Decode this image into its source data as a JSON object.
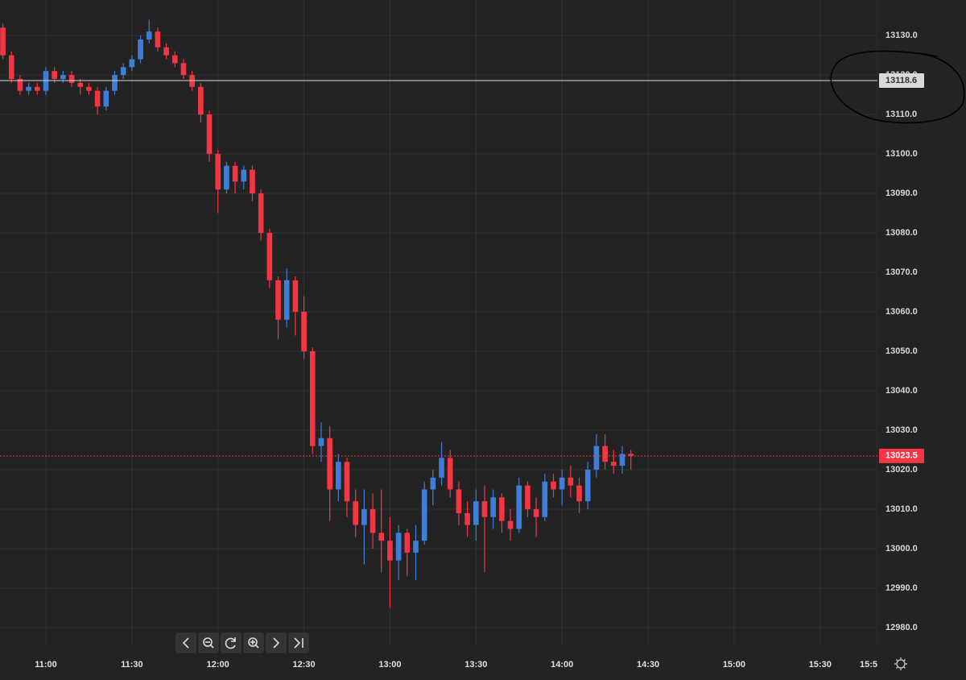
{
  "chart_data": {
    "type": "candlestick",
    "x": [
      "10:45",
      "10:48",
      "10:51",
      "10:54",
      "10:57",
      "11:00",
      "11:03",
      "11:06",
      "11:09",
      "11:12",
      "11:15",
      "11:18",
      "11:21",
      "11:24",
      "11:27",
      "11:30",
      "11:33",
      "11:36",
      "11:39",
      "11:42",
      "11:45",
      "11:48",
      "11:51",
      "11:54",
      "11:57",
      "12:00",
      "12:03",
      "12:06",
      "12:09",
      "12:12",
      "12:15",
      "12:18",
      "12:21",
      "12:24",
      "12:27",
      "12:30",
      "12:33",
      "12:36",
      "12:39",
      "12:42",
      "12:45",
      "12:48",
      "12:51",
      "12:54",
      "12:57",
      "13:00",
      "13:03",
      "13:06",
      "13:09",
      "13:12",
      "13:15",
      "13:18",
      "13:21",
      "13:24",
      "13:27",
      "13:30",
      "13:33",
      "13:36",
      "13:39",
      "13:42",
      "13:45",
      "13:48",
      "13:51",
      "13:54",
      "13:57",
      "14:00",
      "14:03",
      "14:06",
      "14:09",
      "14:12",
      "14:15",
      "14:18",
      "14:21",
      "14:24"
    ],
    "open": [
      13132,
      13125,
      13119,
      13116,
      13117,
      13116,
      13121,
      13119,
      13120,
      13118,
      13117,
      13116,
      13112,
      13116,
      13120,
      13122,
      13124,
      13129,
      13131,
      13127,
      13125,
      13123,
      13120,
      13117,
      13110,
      13100,
      13091,
      13097,
      13093,
      13096,
      13090,
      13080,
      13068,
      13058,
      13068,
      13060,
      13050,
      13026,
      13028,
      13015,
      13022,
      13012,
      13006,
      13010,
      13004,
      13002,
      12997,
      13004,
      12999,
      13002,
      13015,
      13018,
      13023,
      13015,
      13009,
      13006,
      13012,
      13008,
      13013,
      13007,
      13005,
      13016,
      13010,
      13008,
      13017,
      13015,
      13018,
      13016,
      13012,
      13020,
      13026,
      13022,
      13021,
      13024
    ],
    "high": [
      13133,
      13126,
      13120,
      13118,
      13118,
      13122,
      13122,
      13121,
      13121,
      13119,
      13118,
      13117,
      13117,
      13121,
      13123,
      13125,
      13130,
      13134,
      13132,
      13128,
      13126,
      13124,
      13121,
      13118,
      13111,
      13101,
      13098,
      13098,
      13097,
      13097,
      13091,
      13081,
      13069,
      13071,
      13069,
      13064,
      13051,
      13032,
      13031,
      13024,
      13023,
      13015,
      13015,
      13014,
      13015,
      13008,
      13006,
      13005,
      13006,
      13017,
      13020,
      13027,
      13025,
      13017,
      13012,
      13015,
      13016,
      13015,
      13014,
      13010,
      13018,
      13017,
      13013,
      13019,
      13019,
      13020,
      13021,
      13018,
      13022,
      13029,
      13029,
      13025,
      13026,
      13025
    ],
    "low": [
      13124,
      13118,
      13115,
      13115,
      13115,
      13115,
      13118,
      13118,
      13117,
      13115,
      13115,
      13110,
      13111,
      13115,
      13119,
      13121,
      13123,
      13128,
      13126,
      13124,
      13122,
      13119,
      13116,
      13108,
      13098,
      13085,
      13090,
      13090,
      13091,
      13088,
      13078,
      13066,
      13053,
      13056,
      13054,
      13048,
      13024,
      13022,
      13007,
      13012,
      13008,
      13003,
      12996,
      13000,
      12994,
      12985,
      12992,
      12993,
      12992,
      13001,
      13011,
      13016,
      13013,
      13006,
      13003,
      13002,
      12994,
      13005,
      13004,
      13002,
      13004,
      13008,
      13003,
      13007,
      13013,
      13011,
      13013,
      13009,
      13010,
      13018,
      13020,
      13019,
      13019,
      13020
    ],
    "close": [
      13125,
      13119,
      13116,
      13117,
      13116,
      13121,
      13119,
      13120,
      13118,
      13117,
      13116,
      13112,
      13116,
      13120,
      13122,
      13124,
      13129,
      13131,
      13127,
      13125,
      13123,
      13120,
      13117,
      13110,
      13100,
      13091,
      13097,
      13093,
      13096,
      13090,
      13080,
      13068,
      13058,
      13068,
      13060,
      13050,
      13026,
      13028,
      13015,
      13022,
      13012,
      13006,
      13010,
      13004,
      13002,
      12997,
      13004,
      12999,
      13002,
      13015,
      13018,
      13023,
      13015,
      13009,
      13006,
      13012,
      13008,
      13013,
      13007,
      13005,
      13016,
      13010,
      13008,
      13017,
      13015,
      13018,
      13016,
      13012,
      13020,
      13026,
      13022,
      13021,
      13024,
      13023.5
    ],
    "up_color": "#3d7fd8",
    "down_color": "#f23645",
    "xlim": [
      "10:44",
      "15:50"
    ],
    "xticks": [
      "11:00",
      "11:30",
      "12:00",
      "12:30",
      "13:00",
      "13:30",
      "14:00",
      "14:30",
      "15:00",
      "15:30",
      {
        "value": "15:50",
        "label": "15:5"
      }
    ],
    "ylim": [
      12975.7,
      13139
    ],
    "yticks": [
      {
        "value": 12980,
        "label": "12980.0"
      },
      {
        "value": 12990,
        "label": "12990.0"
      },
      {
        "value": 13000,
        "label": "13000.0"
      },
      {
        "value": 13010,
        "label": "13010.0"
      },
      {
        "value": 13020,
        "label": "13020.0"
      },
      {
        "value": 13030,
        "label": "13030.0"
      },
      {
        "value": 13040,
        "label": "13040.0"
      },
      {
        "value": 13050,
        "label": "13050.0"
      },
      {
        "value": 13060,
        "label": "13060.0"
      },
      {
        "value": 13070,
        "label": "13070.0"
      },
      {
        "value": 13080,
        "label": "13080.0"
      },
      {
        "value": 13090,
        "label": "13090.0"
      },
      {
        "value": 13100,
        "label": "13100.0"
      },
      {
        "value": 13110,
        "label": "13110.0"
      },
      {
        "value": 13120,
        "label": "13120.0"
      },
      {
        "value": 13130,
        "label": "13130.0"
      }
    ],
    "grid": true,
    "price_lines": [
      {
        "value": 13118.6,
        "color": "#d9d9d9",
        "style": "solid"
      },
      {
        "value": 13023.5,
        "color": "#f23645",
        "style": "dotted"
      }
    ]
  }
}
